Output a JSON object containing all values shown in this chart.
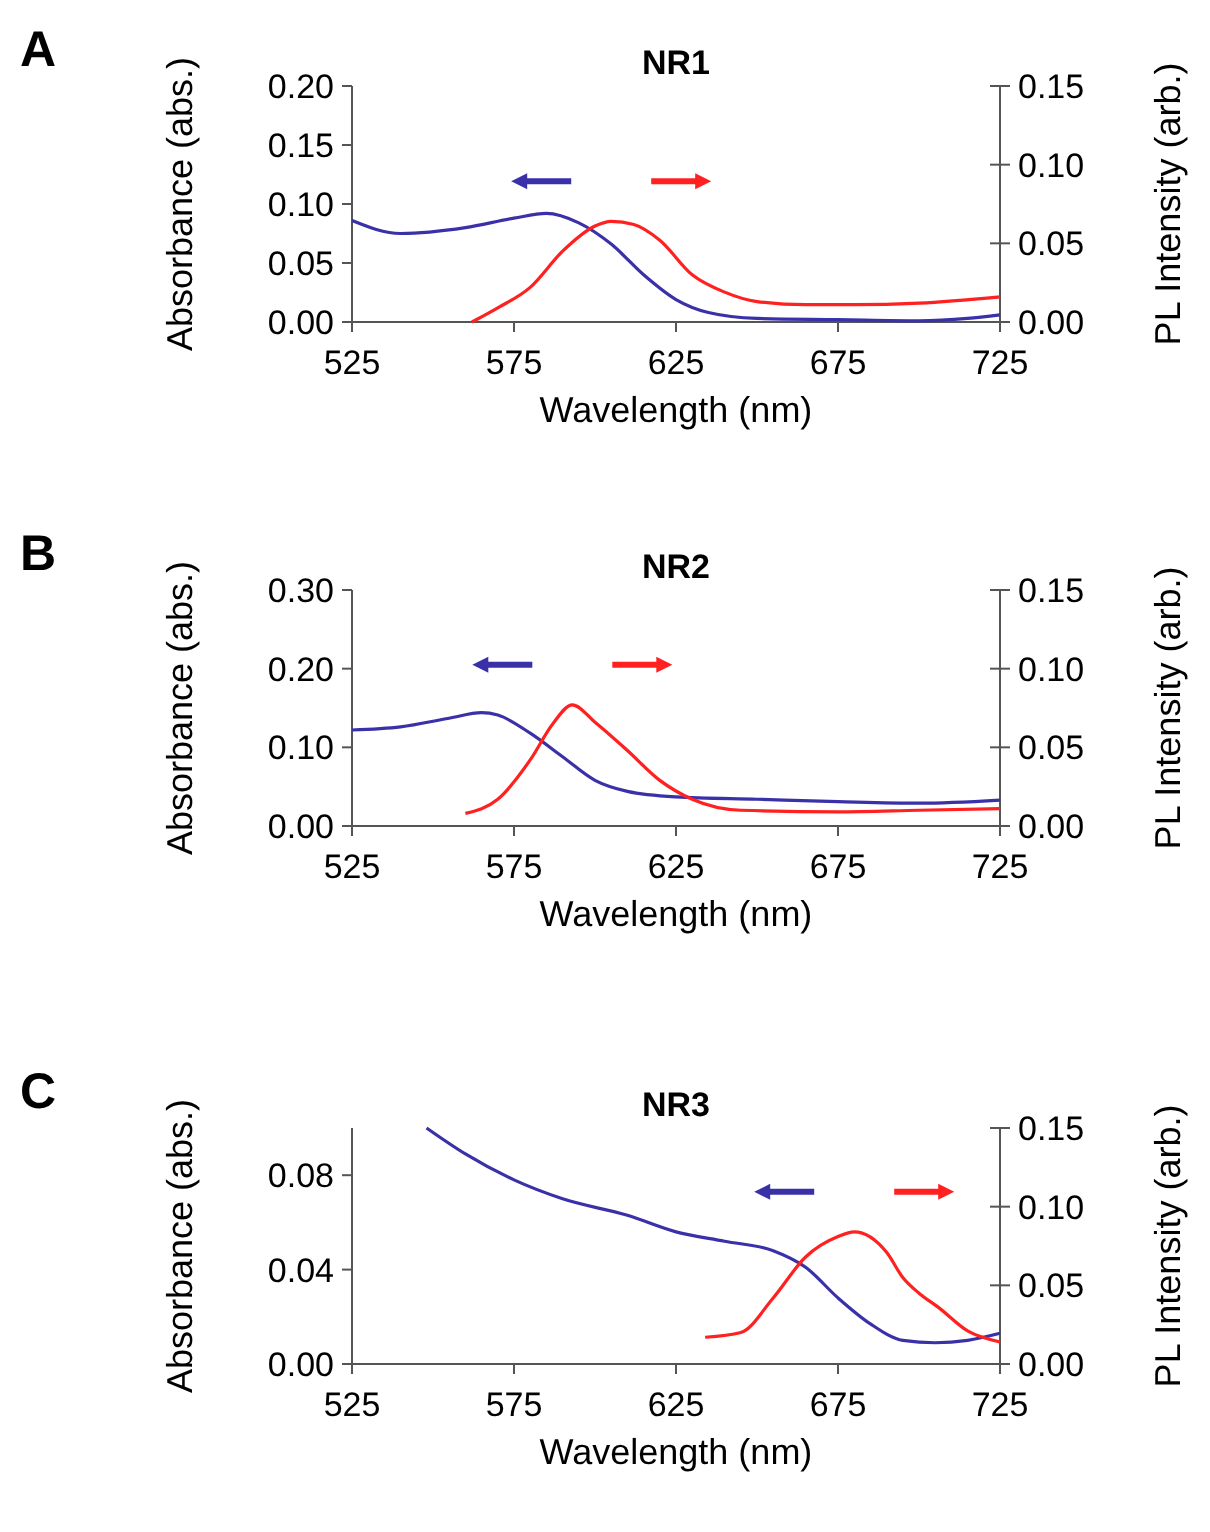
{
  "chart_data": [
    {
      "type": "line",
      "title": "NR1",
      "annotations": [
        "A"
      ],
      "xlabel": "Wavelength  (nm)",
      "ylabel": "Absorbance (abs.)",
      "y2label": "PL Intensity (arb.)",
      "xlim": [
        525,
        725
      ],
      "xticks": [
        525,
        575,
        625,
        675,
        725
      ],
      "ylim": [
        0,
        0.2
      ],
      "yticks": [
        {
          "value": 0,
          "label": "0.00"
        },
        {
          "value": 0.05,
          "label": "0.05"
        },
        {
          "value": 0.1,
          "label": "0.10"
        },
        {
          "value": 0.15,
          "label": "0.15"
        },
        {
          "value": 0.2,
          "label": "0.20"
        }
      ],
      "y2lim": [
        0,
        0.15
      ],
      "y2ticks": [
        {
          "value": 0,
          "label": "0.00"
        },
        {
          "value": 0.05,
          "label": "0.05"
        },
        {
          "value": 0.1,
          "label": "0.10"
        },
        {
          "value": 0.15,
          "label": "0.15"
        }
      ],
      "grid": false,
      "series": [
        {
          "color": "#3a30a8",
          "x": [
            525,
            540,
            560,
            575,
            585,
            595,
            605,
            615,
            625,
            635,
            650,
            675,
            700,
            715,
            725
          ],
          "values": [
            0.086,
            0.075,
            0.08,
            0.088,
            0.092,
            0.084,
            0.066,
            0.04,
            0.019,
            0.008,
            0.003,
            0.002,
            0.001,
            0.003,
            0.006
          ]
        },
        {
          "color": "#ff2020",
          "axis": "y2",
          "x": [
            562,
            570,
            580,
            590,
            600,
            605,
            612,
            620,
            630,
            640,
            650,
            665,
            680,
            700,
            725
          ],
          "values": [
            0,
            0.009,
            0.022,
            0.045,
            0.061,
            0.064,
            0.062,
            0.052,
            0.03,
            0.019,
            0.013,
            0.011,
            0.011,
            0.012,
            0.016
          ]
        }
      ]
    },
    {
      "type": "line",
      "title": "NR2",
      "annotations": [
        "B"
      ],
      "xlabel": "Wavelength (nm)",
      "ylabel": "Absorbance (abs.)",
      "y2label": "PL Intensity (arb.)",
      "xlim": [
        525,
        725
      ],
      "xticks": [
        525,
        575,
        625,
        675,
        725
      ],
      "ylim": [
        0,
        0.3
      ],
      "yticks": [
        {
          "value": 0,
          "label": "0.00"
        },
        {
          "value": 0.1,
          "label": "0.10"
        },
        {
          "value": 0.2,
          "label": "0.20"
        },
        {
          "value": 0.3,
          "label": "0.30"
        }
      ],
      "y2lim": [
        0,
        0.15
      ],
      "y2ticks": [
        {
          "value": 0,
          "label": "0.00"
        },
        {
          "value": 0.05,
          "label": "0.05"
        },
        {
          "value": 0.1,
          "label": "0.10"
        },
        {
          "value": 0.15,
          "label": "0.15"
        }
      ],
      "grid": false,
      "series": [
        {
          "color": "#3a30a8",
          "x": [
            525,
            540,
            555,
            565,
            570,
            580,
            590,
            600,
            610,
            625,
            650,
            675,
            700,
            725
          ],
          "values": [
            0.122,
            0.126,
            0.137,
            0.144,
            0.141,
            0.118,
            0.088,
            0.058,
            0.044,
            0.037,
            0.034,
            0.031,
            0.029,
            0.033
          ]
        },
        {
          "color": "#ff2020",
          "axis": "y2",
          "x": [
            560,
            570,
            580,
            587,
            593,
            600,
            610,
            620,
            630,
            645,
            675,
            700,
            725
          ],
          "values": [
            0.008,
            0.017,
            0.042,
            0.065,
            0.077,
            0.066,
            0.048,
            0.029,
            0.017,
            0.01,
            0.009,
            0.01,
            0.011
          ]
        }
      ]
    },
    {
      "type": "line",
      "title": "NR3",
      "annotations": [
        "C"
      ],
      "xlabel": "Wavelength (nm)",
      "ylabel": "Absorbance (abs.)",
      "y2label": "PL Intensity (arb.)",
      "xlim": [
        525,
        725
      ],
      "xticks": [
        525,
        575,
        625,
        675,
        725
      ],
      "ylim": [
        0,
        0.1
      ],
      "yticks": [
        {
          "value": 0,
          "label": "0.00"
        },
        {
          "value": 0.04,
          "label": "0.04"
        },
        {
          "value": 0.08,
          "label": "0.08"
        }
      ],
      "y2lim": [
        0,
        0.15
      ],
      "y2ticks": [
        {
          "value": 0,
          "label": "0.00"
        },
        {
          "value": 0.05,
          "label": "0.05"
        },
        {
          "value": 0.1,
          "label": "0.10"
        },
        {
          "value": 0.15,
          "label": "0.15"
        }
      ],
      "grid": false,
      "series": [
        {
          "color": "#3a30a8",
          "x": [
            548,
            560,
            575,
            590,
            610,
            625,
            640,
            655,
            665,
            675,
            685,
            695,
            705,
            715,
            725
          ],
          "values": [
            0.1,
            0.089,
            0.078,
            0.07,
            0.063,
            0.056,
            0.052,
            0.048,
            0.041,
            0.028,
            0.017,
            0.01,
            0.009,
            0.01,
            0.013
          ]
        },
        {
          "color": "#ff2020",
          "axis": "y2",
          "x": [
            634,
            645,
            655,
            665,
            675,
            680,
            690,
            695,
            700,
            706,
            715,
            725
          ],
          "values": [
            0.017,
            0.02,
            0.042,
            0.068,
            0.081,
            0.084,
            0.071,
            0.055,
            0.045,
            0.036,
            0.021,
            0.014
          ]
        }
      ]
    }
  ]
}
